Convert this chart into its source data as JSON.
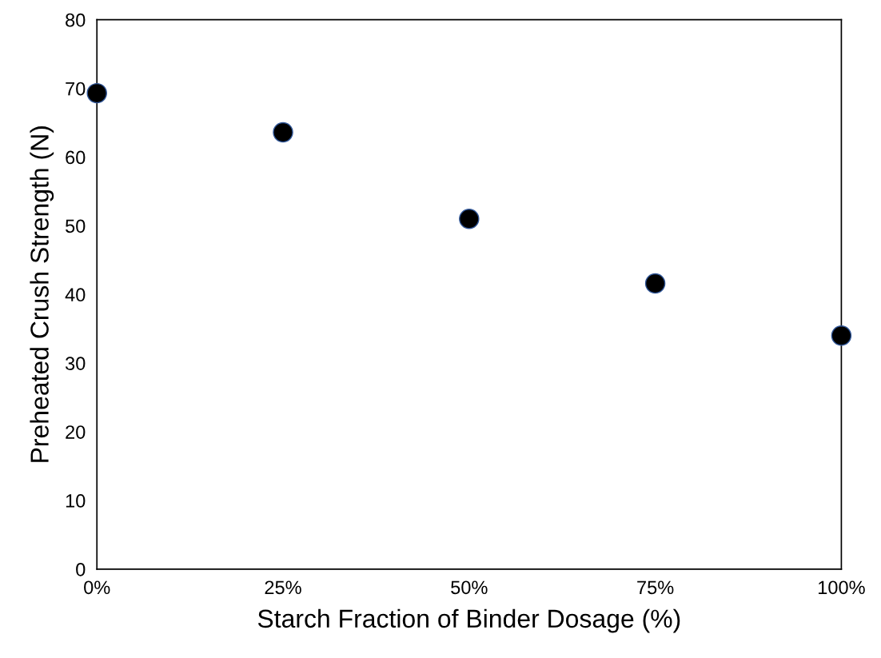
{
  "chart_data": {
    "type": "scatter",
    "xlabel": "Starch Fraction of Binder Dosage (%)",
    "ylabel": "Preheated Crush Strength (N)",
    "x": [
      0,
      25,
      50,
      75,
      100
    ],
    "series": [
      {
        "color": "#000000",
        "values": [
          69.3,
          63.6,
          51.0,
          41.6,
          34.0
        ]
      }
    ],
    "xlim": [
      0,
      100
    ],
    "ylim": [
      0,
      80
    ],
    "xticks": [
      {
        "value": 0,
        "label": "0%"
      },
      {
        "value": 25,
        "label": "25%"
      },
      {
        "value": 50,
        "label": "50%"
      },
      {
        "value": 75,
        "label": "75%"
      },
      {
        "value": 100,
        "label": "100%"
      }
    ],
    "yticks": [
      0,
      10,
      20,
      30,
      40,
      50,
      60,
      70,
      80
    ],
    "marker": "circle",
    "grid": false,
    "legend": false
  }
}
